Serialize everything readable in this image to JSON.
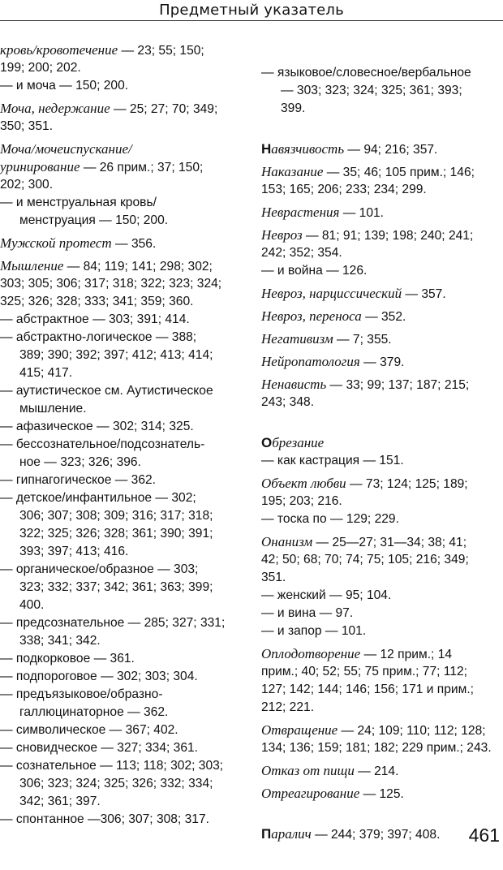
{
  "header": {
    "title": "Предметный указатель"
  },
  "page_number": "461",
  "columns": [
    {
      "entries": [
        {
          "kind": "main",
          "term": "кровь/кровотечение",
          "text": " — 23; 55; 150;",
          "cont": [
            "199; 200; 202."
          ]
        },
        {
          "kind": "sub",
          "text": "— и моча — 150; 200.",
          "cont": []
        },
        {
          "kind": "main",
          "term": "Моча, недержание",
          "text": " — 25; 27; 70; 349;",
          "cont": [
            "350; 351."
          ]
        },
        {
          "kind": "main",
          "term": "Моча/мочеиспускание/",
          "text": "",
          "cont_term": "уринирование",
          "cont_term_text": " — 26 прим.; 37; 150;",
          "cont": [
            "202; 300."
          ]
        },
        {
          "kind": "sub",
          "text": "— и менструальная кровь/",
          "cont": [
            "менструация — 150; 200."
          ]
        },
        {
          "kind": "main",
          "term": "Мужской протест",
          "text": " — 356.",
          "cont": []
        },
        {
          "kind": "main",
          "term": "Мышление",
          "text": " — 84; 119; 141; 298; 302;",
          "cont": [
            "303; 305; 306; 317; 318; 322; 323; 324;",
            "325; 326; 328; 333; 341; 359; 360."
          ]
        },
        {
          "kind": "sub",
          "text": "— абстрактное — 303; 391; 414.",
          "cont": []
        },
        {
          "kind": "sub",
          "text": "— абстрактно-логическое — 388;",
          "cont": [
            "389; 390; 392; 397; 412; 413; 414;",
            "415; 417."
          ]
        },
        {
          "kind": "sub",
          "text": "— аутистическое см. Аутистическое",
          "cont": [
            "мышление."
          ]
        },
        {
          "kind": "sub",
          "text": "— афазическое — 302; 314; 325.",
          "cont": []
        },
        {
          "kind": "sub",
          "text": "— бессознательное/подсознатель-",
          "cont": [
            "ное — 323; 326; 396."
          ]
        },
        {
          "kind": "sub",
          "text": "— гипнагогическое — 362.",
          "cont": []
        },
        {
          "kind": "sub",
          "text": "— детское/инфантильное — 302;",
          "cont": [
            "306; 307; 308; 309; 316; 317; 318;",
            "322; 325; 326; 328; 361; 390; 391;",
            "393; 397; 413; 416."
          ]
        },
        {
          "kind": "sub",
          "text": "— органическое/образное — 303;",
          "cont": [
            "323; 332; 337; 342; 361; 363; 399;",
            "400."
          ]
        },
        {
          "kind": "sub",
          "text": "— предсознательное — 285; 327; 331;",
          "cont": [
            "338; 341; 342."
          ]
        },
        {
          "kind": "sub",
          "text": "— подкорковое — 361.",
          "cont": []
        },
        {
          "kind": "sub",
          "text": "— подпороговое — 302; 303; 304.",
          "cont": []
        },
        {
          "kind": "sub",
          "text": "— предъязыковое/образно-",
          "cont": [
            "галлюцинаторное — 362."
          ]
        },
        {
          "kind": "sub",
          "text": "— символическое — 367; 402.",
          "cont": []
        },
        {
          "kind": "sub",
          "text": "— сновидческое — 327; 334; 361.",
          "cont": []
        },
        {
          "kind": "sub",
          "text": "— сознательное — 113; 118; 302; 303;",
          "cont": [
            "306; 323; 324; 325; 326; 332; 334;",
            "342; 361; 397."
          ]
        },
        {
          "kind": "sub",
          "text": "— спонтанное —306; 307; 308; 317.",
          "cont": []
        }
      ]
    },
    {
      "entries": [
        {
          "kind": "sub",
          "text": "— языковое/словесное/вербальное",
          "cont": [
            "— 303; 323; 324; 325; 361; 393;",
            "399."
          ]
        },
        {
          "kind": "gap"
        },
        {
          "kind": "main",
          "initial": "Н",
          "term": "авязчивость",
          "text": " — 94; 216; 357.",
          "cont": []
        },
        {
          "kind": "main",
          "term": "Наказание",
          "text": " — 35; 46; 105 прим.; 146;",
          "cont": [
            "153; 165; 206; 233; 234; 299."
          ]
        },
        {
          "kind": "main",
          "term": "Неврастения",
          "text": " — 101.",
          "cont": []
        },
        {
          "kind": "main",
          "term": "Невроз",
          "text": " — 81; 91; 139; 198; 240; 241;",
          "cont": [
            "242; 352; 354."
          ]
        },
        {
          "kind": "sub",
          "text": "— и война — 126.",
          "cont": []
        },
        {
          "kind": "main",
          "term": "Невроз, нарциссический",
          "text": " — 357.",
          "cont": []
        },
        {
          "kind": "main",
          "term": "Невроз, переноса",
          "text": " — 352.",
          "cont": []
        },
        {
          "kind": "main",
          "term": "Негативизм",
          "text": " — 7; 355.",
          "cont": []
        },
        {
          "kind": "main",
          "term": "Нейропатология",
          "text": " — 379.",
          "cont": []
        },
        {
          "kind": "main",
          "term": "Ненависть",
          "text": " — 33; 99; 137; 187; 215;",
          "cont": [
            "243; 348."
          ]
        },
        {
          "kind": "gap"
        },
        {
          "kind": "main",
          "initial": "О",
          "term": "брезание",
          "text": "",
          "cont": []
        },
        {
          "kind": "sub",
          "text": "— как кастрация — 151.",
          "cont": []
        },
        {
          "kind": "main",
          "term": "Объект любви",
          "text": " — 73; 124; 125; 189;",
          "cont": [
            "195; 203; 216."
          ]
        },
        {
          "kind": "sub",
          "text": "— тоска по — 129; 229.",
          "cont": []
        },
        {
          "kind": "main",
          "term": "Онанизм",
          "text": " — 25—27; 31—34; 38; 41;",
          "cont": [
            "42; 50; 68; 70; 74; 75; 105; 216; 349;",
            "351."
          ]
        },
        {
          "kind": "sub",
          "text": "— женский — 95; 104.",
          "cont": []
        },
        {
          "kind": "sub",
          "text": "— и вина — 97.",
          "cont": []
        },
        {
          "kind": "sub",
          "text": "— и запор — 101.",
          "cont": []
        },
        {
          "kind": "main",
          "term": "Оплодотворение",
          "text": " — 12 прим.; 14",
          "cont": [
            "прим.; 40; 52; 55; 75 прим.; 77; 112;",
            "127; 142; 144; 146; 156; 171 и прим.;",
            "212; 221."
          ]
        },
        {
          "kind": "main",
          "term": "Отвращение",
          "text": " — 24; 109; 110; 112; 128;",
          "cont": [
            "134; 136; 159; 181; 182; 229 прим.; 243."
          ]
        },
        {
          "kind": "main",
          "term": "Отказ от пищи",
          "text": " — 214.",
          "cont": []
        },
        {
          "kind": "main",
          "term": "Отреагирование",
          "text": " — 125.",
          "cont": []
        },
        {
          "kind": "gap"
        },
        {
          "kind": "main",
          "initial": "П",
          "term": "аралич",
          "text": " — 244; 379; 397; 408.",
          "cont": []
        }
      ]
    }
  ]
}
